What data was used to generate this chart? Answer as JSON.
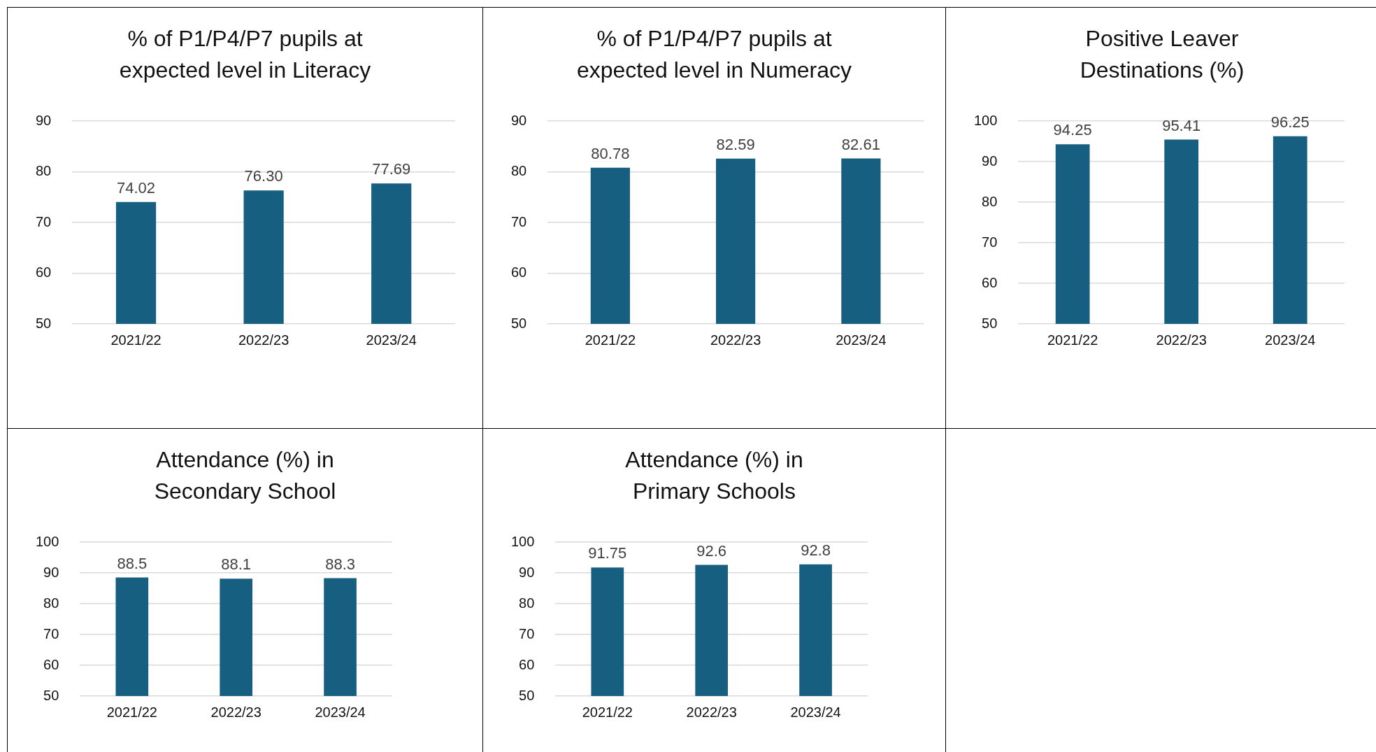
{
  "chart_data": [
    {
      "type": "bar",
      "title": "% of P1/P4/P7 pupils at expected level in Literacy",
      "categories": [
        "2021/22",
        "2022/23",
        "2023/24"
      ],
      "values": [
        74.02,
        76.3,
        77.69
      ],
      "value_labels": [
        "74.02",
        "76.30",
        "77.69"
      ],
      "color": "#165f80",
      "ylim": [
        50,
        90
      ],
      "yticks": [
        50,
        60,
        70,
        80,
        90
      ],
      "grid": "y",
      "legend": false
    },
    {
      "type": "bar",
      "title": "% of P1/P4/P7 pupils at expected level in Numeracy",
      "categories": [
        "2021/22",
        "2022/23",
        "2023/24"
      ],
      "values": [
        80.78,
        82.59,
        82.61
      ],
      "value_labels": [
        "80.78",
        "82.59",
        "82.61"
      ],
      "color": "#165f80",
      "ylim": [
        50,
        90
      ],
      "yticks": [
        50,
        60,
        70,
        80,
        90
      ],
      "grid": "y",
      "legend": false
    },
    {
      "type": "bar",
      "title": "Positive Leaver Destinations (%)",
      "categories": [
        "2021/22",
        "2022/23",
        "2023/24"
      ],
      "values": [
        94.25,
        95.41,
        96.25
      ],
      "value_labels": [
        "94.25",
        "95.41",
        "96.25"
      ],
      "color": "#165f80",
      "ylim": [
        50,
        100
      ],
      "yticks": [
        50,
        60,
        70,
        80,
        90,
        100
      ],
      "grid": "y",
      "legend": false
    },
    {
      "type": "bar",
      "title": "Attendance (%) in Secondary School",
      "categories": [
        "2021/22",
        "2022/23",
        "2023/24"
      ],
      "values": [
        88.5,
        88.1,
        88.3
      ],
      "value_labels": [
        "88.5",
        "88.1",
        "88.3"
      ],
      "color": "#165f80",
      "ylim": [
        50,
        100
      ],
      "yticks": [
        50,
        60,
        70,
        80,
        90,
        100
      ],
      "grid": "y",
      "legend": false
    },
    {
      "type": "bar",
      "title": "Attendance (%) in Primary Schools",
      "categories": [
        "2021/22",
        "2022/23",
        "2023/24"
      ],
      "values": [
        91.75,
        92.6,
        92.8
      ],
      "value_labels": [
        "91.75",
        "92.6",
        "92.8"
      ],
      "color": "#165f80",
      "ylim": [
        50,
        100
      ],
      "yticks": [
        50,
        60,
        70,
        80,
        90,
        100
      ],
      "grid": "y",
      "legend": false
    }
  ]
}
